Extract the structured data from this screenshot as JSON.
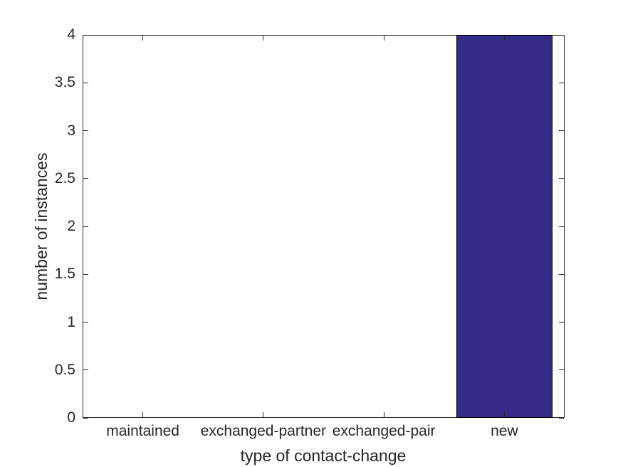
{
  "chart_data": {
    "type": "bar",
    "xlabel": "type of contact-change",
    "ylabel": "number of instances",
    "categories": [
      "maintained",
      "exchanged-partner",
      "exchanged-pair",
      "new"
    ],
    "values": [
      0,
      0,
      0,
      4
    ],
    "ylim": [
      0,
      4
    ],
    "yticks": [
      0,
      0.5,
      1,
      1.5,
      2,
      2.5,
      3,
      3.5,
      4
    ],
    "ytick_labels": [
      "0",
      "0.5",
      "1",
      "1.5",
      "2",
      "2.5",
      "3",
      "3.5",
      "4"
    ],
    "grid": false,
    "bar_width_fraction": 0.8,
    "colors": {
      "bar_fill": "#352A87",
      "bar_edge": "#000000",
      "axis": "#262626",
      "text": "#262626"
    }
  }
}
